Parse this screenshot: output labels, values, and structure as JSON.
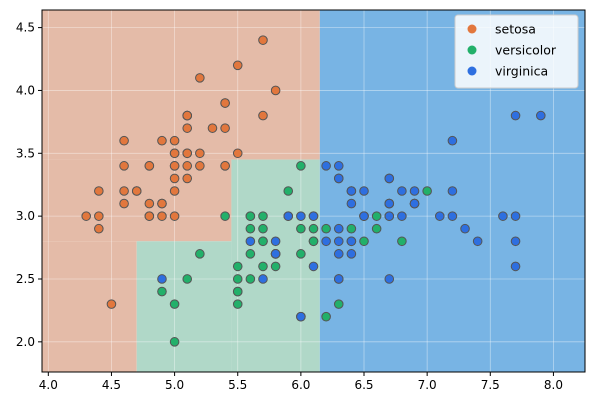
{
  "chart_data": {
    "type": "scatter",
    "title": "",
    "xlabel": "",
    "ylabel": "",
    "xlim": [
      3.95,
      8.25
    ],
    "ylim": [
      1.76,
      4.64
    ],
    "x_ticks": [
      4.0,
      4.5,
      5.0,
      5.5,
      6.0,
      6.5,
      7.0,
      7.5,
      8.0
    ],
    "x_tick_labels": [
      "4.0",
      "4.5",
      "5.0",
      "5.5",
      "6.0",
      "6.5",
      "7.0",
      "7.5",
      "8.0"
    ],
    "y_ticks": [
      2.0,
      2.5,
      3.0,
      3.5,
      4.0,
      4.5
    ],
    "y_tick_labels": [
      "2.0",
      "2.5",
      "3.0",
      "3.5",
      "4.0",
      "4.5"
    ],
    "grid": true,
    "legend_position": "top-right",
    "decision_regions": [
      {
        "class": "setosa",
        "x": [
          3.95,
          6.15
        ],
        "y": [
          3.45,
          4.64
        ],
        "color": "#e4bba8"
      },
      {
        "class": "setosa",
        "x": [
          3.95,
          5.45
        ],
        "y": [
          2.8,
          3.45
        ],
        "color": "#e4bba8"
      },
      {
        "class": "setosa",
        "x": [
          3.95,
          4.7
        ],
        "y": [
          1.76,
          2.8
        ],
        "color": "#e4bba8"
      },
      {
        "class": "versicolor",
        "x": [
          4.7,
          5.45
        ],
        "y": [
          1.76,
          2.8
        ],
        "color": "#b0d8c8"
      },
      {
        "class": "versicolor",
        "x": [
          5.45,
          6.15
        ],
        "y": [
          1.76,
          3.45
        ],
        "color": "#b0d8c8"
      },
      {
        "class": "virginica",
        "x": [
          6.15,
          8.25
        ],
        "y": [
          1.76,
          4.64
        ],
        "color": "#78b4e4"
      }
    ],
    "series": [
      {
        "name": "setosa",
        "color": "#e2773d",
        "points": [
          [
            5.1,
            3.5
          ],
          [
            4.9,
            3.0
          ],
          [
            4.7,
            3.2
          ],
          [
            4.6,
            3.1
          ],
          [
            5.0,
            3.6
          ],
          [
            5.4,
            3.9
          ],
          [
            4.6,
            3.4
          ],
          [
            5.0,
            3.4
          ],
          [
            4.4,
            2.9
          ],
          [
            4.9,
            3.1
          ],
          [
            5.4,
            3.7
          ],
          [
            4.8,
            3.4
          ],
          [
            4.8,
            3.0
          ],
          [
            4.3,
            3.0
          ],
          [
            5.8,
            4.0
          ],
          [
            5.7,
            4.4
          ],
          [
            5.4,
            3.9
          ],
          [
            5.1,
            3.5
          ],
          [
            5.7,
            3.8
          ],
          [
            5.1,
            3.8
          ],
          [
            5.4,
            3.4
          ],
          [
            5.1,
            3.7
          ],
          [
            4.6,
            3.6
          ],
          [
            5.1,
            3.3
          ],
          [
            4.8,
            3.4
          ],
          [
            5.0,
            3.0
          ],
          [
            5.0,
            3.4
          ],
          [
            5.2,
            3.5
          ],
          [
            5.2,
            3.4
          ],
          [
            4.7,
            3.2
          ],
          [
            4.8,
            3.1
          ],
          [
            5.4,
            3.4
          ],
          [
            5.2,
            4.1
          ],
          [
            5.5,
            4.2
          ],
          [
            4.9,
            3.1
          ],
          [
            5.0,
            3.2
          ],
          [
            5.5,
            3.5
          ],
          [
            4.9,
            3.6
          ],
          [
            4.4,
            3.0
          ],
          [
            5.1,
            3.4
          ],
          [
            5.0,
            3.5
          ],
          [
            4.5,
            2.3
          ],
          [
            4.4,
            3.2
          ],
          [
            5.0,
            3.5
          ],
          [
            5.1,
            3.8
          ],
          [
            4.8,
            3.0
          ],
          [
            5.1,
            3.8
          ],
          [
            4.6,
            3.2
          ],
          [
            5.3,
            3.7
          ],
          [
            5.0,
            3.3
          ]
        ]
      },
      {
        "name": "versicolor",
        "color": "#22b06a",
        "points": [
          [
            7.0,
            3.2
          ],
          [
            6.4,
            3.2
          ],
          [
            6.9,
            3.1
          ],
          [
            5.5,
            2.3
          ],
          [
            6.5,
            2.8
          ],
          [
            5.7,
            2.8
          ],
          [
            6.3,
            3.3
          ],
          [
            4.9,
            2.4
          ],
          [
            6.6,
            2.9
          ],
          [
            5.2,
            2.7
          ],
          [
            5.0,
            2.0
          ],
          [
            5.9,
            3.0
          ],
          [
            6.0,
            2.2
          ],
          [
            6.1,
            2.9
          ],
          [
            5.6,
            2.9
          ],
          [
            6.7,
            3.1
          ],
          [
            5.6,
            3.0
          ],
          [
            5.8,
            2.7
          ],
          [
            6.2,
            2.2
          ],
          [
            5.6,
            2.5
          ],
          [
            5.9,
            3.2
          ],
          [
            6.1,
            2.8
          ],
          [
            6.3,
            2.5
          ],
          [
            6.1,
            2.8
          ],
          [
            6.4,
            2.9
          ],
          [
            6.6,
            3.0
          ],
          [
            6.8,
            2.8
          ],
          [
            6.7,
            3.0
          ],
          [
            6.0,
            2.9
          ],
          [
            5.7,
            2.6
          ],
          [
            5.5,
            2.4
          ],
          [
            5.5,
            2.4
          ],
          [
            5.8,
            2.7
          ],
          [
            6.0,
            2.7
          ],
          [
            5.4,
            3.0
          ],
          [
            6.0,
            3.4
          ],
          [
            6.7,
            3.1
          ],
          [
            6.3,
            2.3
          ],
          [
            5.6,
            3.0
          ],
          [
            5.5,
            2.5
          ],
          [
            5.5,
            2.6
          ],
          [
            6.1,
            3.0
          ],
          [
            5.8,
            2.6
          ],
          [
            5.0,
            2.3
          ],
          [
            5.6,
            2.7
          ],
          [
            5.7,
            3.0
          ],
          [
            5.7,
            2.9
          ],
          [
            6.2,
            2.9
          ],
          [
            5.1,
            2.5
          ],
          [
            5.7,
            2.8
          ]
        ]
      },
      {
        "name": "virginica",
        "color": "#2e6fe0",
        "points": [
          [
            6.3,
            3.3
          ],
          [
            5.8,
            2.7
          ],
          [
            7.1,
            3.0
          ],
          [
            6.3,
            2.9
          ],
          [
            6.5,
            3.0
          ],
          [
            7.6,
            3.0
          ],
          [
            4.9,
            2.5
          ],
          [
            7.3,
            2.9
          ],
          [
            6.7,
            2.5
          ],
          [
            7.2,
            3.6
          ],
          [
            6.5,
            3.2
          ],
          [
            6.4,
            2.7
          ],
          [
            6.8,
            3.0
          ],
          [
            5.7,
            2.5
          ],
          [
            5.8,
            2.8
          ],
          [
            6.4,
            3.2
          ],
          [
            6.5,
            3.0
          ],
          [
            7.7,
            3.8
          ],
          [
            7.7,
            2.6
          ],
          [
            6.0,
            2.2
          ],
          [
            6.9,
            3.2
          ],
          [
            5.6,
            2.8
          ],
          [
            7.7,
            2.8
          ],
          [
            6.3,
            2.7
          ],
          [
            6.7,
            3.3
          ],
          [
            7.2,
            3.2
          ],
          [
            6.2,
            2.8
          ],
          [
            6.1,
            3.0
          ],
          [
            6.4,
            2.8
          ],
          [
            7.2,
            3.0
          ],
          [
            7.4,
            2.8
          ],
          [
            7.9,
            3.8
          ],
          [
            6.4,
            2.8
          ],
          [
            6.3,
            2.8
          ],
          [
            6.1,
            2.6
          ],
          [
            7.7,
            3.0
          ],
          [
            6.3,
            3.4
          ],
          [
            6.4,
            3.1
          ],
          [
            6.0,
            3.0
          ],
          [
            6.9,
            3.1
          ],
          [
            6.7,
            3.1
          ],
          [
            6.9,
            3.1
          ],
          [
            5.8,
            2.7
          ],
          [
            6.8,
            3.2
          ],
          [
            6.7,
            3.3
          ],
          [
            6.7,
            3.0
          ],
          [
            6.3,
            2.5
          ],
          [
            6.5,
            3.0
          ],
          [
            6.2,
            3.4
          ],
          [
            5.9,
            3.0
          ]
        ]
      }
    ]
  }
}
